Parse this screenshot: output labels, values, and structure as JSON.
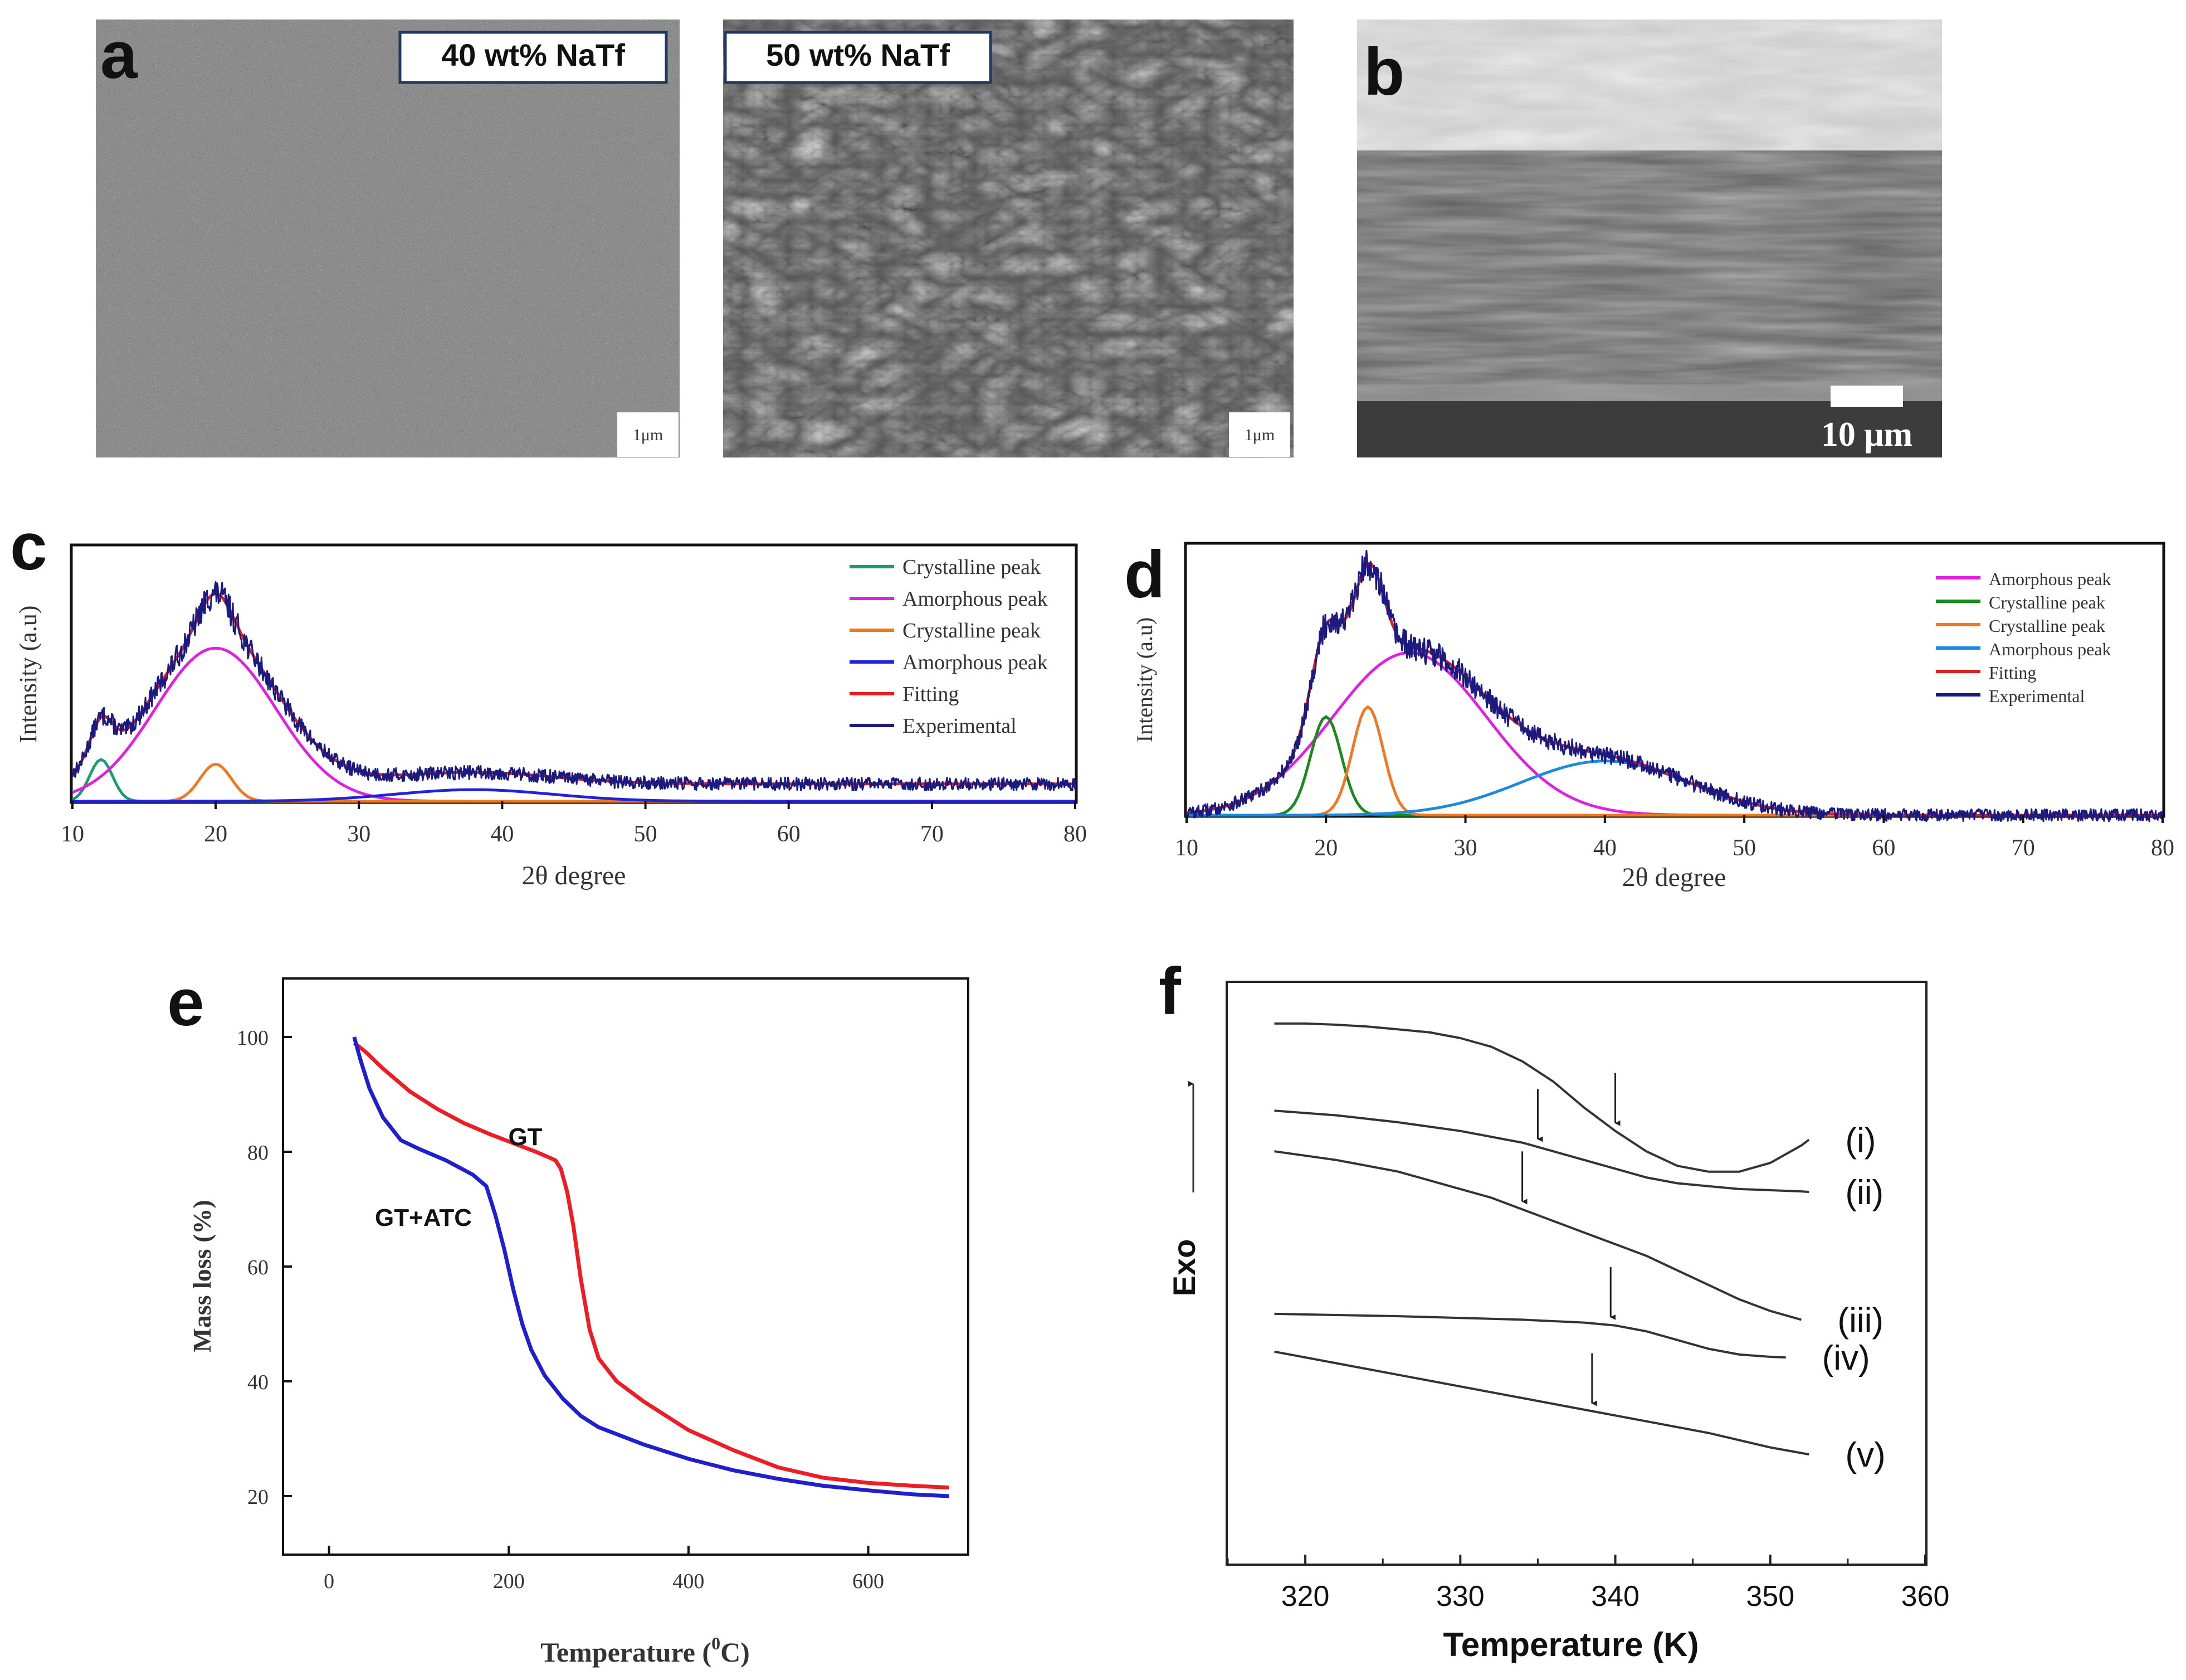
{
  "panels": {
    "a": {
      "letter": "a",
      "label_left": "40 wt% NaTf",
      "label_right": "50 wt% NaTf",
      "scale_left": "1μm",
      "scale_right": "1μm"
    },
    "b": {
      "letter": "b",
      "scale": "10 μm"
    },
    "c": {
      "letter": "c"
    },
    "d": {
      "letter": "d"
    },
    "e": {
      "letter": "e"
    },
    "f": {
      "letter": "f"
    }
  },
  "chart_data": [
    {
      "id": "c",
      "type": "line",
      "xlabel": "2θ degree",
      "ylabel": "Intensity (a.u)",
      "xlim": [
        10,
        80
      ],
      "ylim": [
        0,
        1.1
      ],
      "xticks": [
        10,
        20,
        30,
        40,
        50,
        60,
        70,
        80
      ],
      "legend_position": "top-right",
      "series": [
        {
          "name": "Crystalline peak",
          "color": "#1a9e6e",
          "kind": "gauss",
          "center": 12.0,
          "height": 0.18,
          "width": 0.8
        },
        {
          "name": "Amorphous peak",
          "color": "#e020e0",
          "kind": "gauss",
          "center": 20.0,
          "height": 0.66,
          "width": 4.2
        },
        {
          "name": "Crystalline peak",
          "color": "#f07820",
          "kind": "gauss",
          "center": 20.0,
          "height": 0.16,
          "width": 1.1
        },
        {
          "name": "Amorphous peak",
          "color": "#2222dd",
          "kind": "gauss",
          "center": 38.0,
          "height": 0.05,
          "width": 5.5
        },
        {
          "name": "Fitting",
          "color": "#e02020",
          "kind": "fit"
        },
        {
          "name": "Experimental",
          "color": "#1a1a80",
          "kind": "experimental"
        }
      ],
      "baseline": 0.075
    },
    {
      "id": "d",
      "type": "line",
      "xlabel": "2θ degree",
      "ylabel": "Intensity (a.u)",
      "xlim": [
        10,
        80
      ],
      "ylim": [
        0,
        1.1
      ],
      "xticks": [
        10,
        20,
        30,
        40,
        50,
        60,
        70,
        80
      ],
      "legend_position": "top-right",
      "series": [
        {
          "name": "Amorphous peak",
          "color": "#e020e0",
          "kind": "gauss",
          "center": 26.0,
          "height": 0.66,
          "width": 5.5
        },
        {
          "name": "Crystalline peak",
          "color": "#1a8a1a",
          "kind": "gauss",
          "center": 20.0,
          "height": 0.4,
          "width": 1.1
        },
        {
          "name": "Crystalline peak",
          "color": "#f07820",
          "kind": "gauss",
          "center": 23.0,
          "height": 0.44,
          "width": 1.1
        },
        {
          "name": "Amorphous peak",
          "color": "#1a8ae0",
          "kind": "gauss",
          "center": 40.0,
          "height": 0.22,
          "width": 6.0
        },
        {
          "name": "Fitting",
          "color": "#e02020",
          "kind": "fit"
        },
        {
          "name": "Experimental",
          "color": "#1a1a80",
          "kind": "experimental"
        }
      ],
      "baseline": 0.0
    },
    {
      "id": "e",
      "type": "line",
      "xlabel": "Temperature ( °C)",
      "xlabel_main": "Temperature (",
      "xlabel_sup": "0",
      "xlabel_end": "C)",
      "ylabel": "Mass loss (%)",
      "xlim": [
        -50,
        710
      ],
      "ylim": [
        10,
        110
      ],
      "xticks": [
        0,
        200,
        400,
        600
      ],
      "yticks": [
        20,
        40,
        60,
        80,
        100
      ],
      "series": [
        {
          "name": "GT",
          "color": "#ee1c24",
          "x": [
            28,
            40,
            60,
            90,
            120,
            150,
            180,
            210,
            230,
            245,
            252,
            258,
            265,
            272,
            280,
            290,
            300,
            320,
            350,
            400,
            450,
            500,
            550,
            600,
            650,
            690
          ],
          "y": [
            99,
            97.5,
            94.5,
            90.5,
            87.5,
            85,
            83,
            81.2,
            80,
            79,
            78.5,
            77,
            73,
            67,
            58,
            49,
            44,
            40,
            36.5,
            31.5,
            28,
            25,
            23.2,
            22.3,
            21.8,
            21.5
          ]
        },
        {
          "name": "GT+ATC",
          "color": "#1f1fd0",
          "x": [
            28,
            35,
            45,
            60,
            80,
            100,
            130,
            160,
            175,
            185,
            195,
            205,
            215,
            225,
            240,
            260,
            280,
            300,
            350,
            400,
            450,
            500,
            550,
            600,
            650,
            690
          ],
          "y": [
            100,
            96,
            91,
            86,
            82,
            80.5,
            78.5,
            76,
            74,
            69,
            63,
            56,
            50,
            45.5,
            41,
            37,
            34,
            32,
            29,
            26.5,
            24.5,
            23,
            21.8,
            21,
            20.3,
            20
          ]
        }
      ]
    },
    {
      "id": "f",
      "type": "line",
      "xlabel": "Temperature (K)",
      "ylabel": "Exo",
      "xlim": [
        315,
        360
      ],
      "ylim": [
        0,
        100
      ],
      "xticks": [
        320,
        330,
        340,
        350,
        360
      ],
      "series": [
        {
          "name": "(i)",
          "color": "#333333",
          "x": [
            318,
            320,
            322,
            324,
            326,
            328,
            330,
            332,
            334,
            336,
            338,
            340,
            342,
            344,
            346,
            348,
            350,
            352,
            352.5
          ],
          "y": [
            93,
            93,
            92.8,
            92.5,
            92,
            91.5,
            90.5,
            89,
            86.5,
            83,
            78.5,
            74.5,
            71,
            68.5,
            67.5,
            67.5,
            69,
            72,
            73
          ],
          "arrow_x": 340
        },
        {
          "name": "(ii)",
          "color": "#333333",
          "x": [
            318,
            322,
            326,
            330,
            334,
            336,
            338,
            340,
            342,
            344,
            346,
            348,
            350,
            352,
            352.5
          ],
          "y": [
            78,
            77.2,
            76,
            74.5,
            72.5,
            71,
            69.5,
            68,
            66.5,
            65.5,
            65,
            64.5,
            64.3,
            64.1,
            64
          ],
          "arrow_x": 335
        },
        {
          "name": "(iii)",
          "color": "#333333",
          "x": [
            318,
            322,
            326,
            330,
            332,
            334,
            336,
            338,
            340,
            342,
            344,
            346,
            348,
            350,
            352
          ],
          "y": [
            71,
            69.5,
            67.5,
            64.5,
            63,
            61,
            59,
            57,
            55,
            53,
            50.5,
            48,
            45.5,
            43.5,
            42
          ],
          "arrow_x": 334
        },
        {
          "name": "(iv)",
          "color": "#333333",
          "x": [
            318,
            322,
            326,
            330,
            334,
            338,
            340,
            342,
            344,
            346,
            348,
            350,
            351
          ],
          "y": [
            43,
            42.8,
            42.6,
            42.3,
            42,
            41.5,
            41,
            40,
            38.5,
            37,
            36,
            35.6,
            35.5
          ],
          "arrow_x": 339.7
        },
        {
          "name": "(v)",
          "color": "#333333",
          "x": [
            318,
            322,
            326,
            330,
            334,
            338,
            342,
            346,
            350,
            352.5
          ],
          "y": [
            36.5,
            34.5,
            32.5,
            30.5,
            28.5,
            26.5,
            24.5,
            22.5,
            20,
            18.8
          ],
          "arrow_x": 338.5
        }
      ]
    }
  ]
}
